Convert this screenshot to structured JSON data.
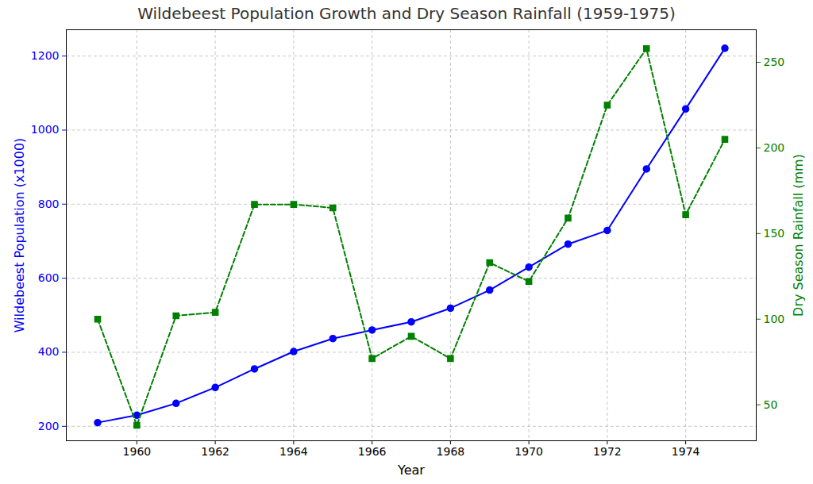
{
  "chart_data": {
    "type": "line",
    "title": "Wildebeest Population Growth and Dry Season Rainfall (1959-1975)",
    "x_label": "Year",
    "x": [
      1959,
      1960,
      1961,
      1962,
      1963,
      1964,
      1965,
      1966,
      1967,
      1968,
      1969,
      1970,
      1971,
      1972,
      1973,
      1974,
      1975
    ],
    "series": [
      {
        "name": "Wildebeest Population (x1000)",
        "color": "blue",
        "marker": "circle",
        "line_style": "solid",
        "values": [
          210,
          230,
          262,
          305,
          355,
          402,
          437,
          460,
          482,
          519,
          568,
          630,
          692,
          729,
          895,
          1057,
          1221
        ]
      },
      {
        "name": "Dry Season Rainfall (mm)",
        "color": "green",
        "marker": "square",
        "line_style": "dashed",
        "axis": "y2",
        "values": [
          100,
          38,
          102,
          104,
          167,
          167,
          165,
          77,
          90,
          77,
          133,
          122,
          159,
          225,
          258,
          161,
          205
        ]
      }
    ],
    "xlim": [
      1958.2,
      1975.8
    ],
    "xticks": [
      1960,
      1962,
      1964,
      1966,
      1968,
      1970,
      1972,
      1974
    ],
    "ylim": [
      161,
      1271
    ],
    "yticks": [
      200,
      400,
      600,
      800,
      1000,
      1200
    ],
    "y2lim": [
      29,
      269
    ],
    "y2ticks": [
      50,
      100,
      150,
      200,
      250
    ],
    "grid": true
  }
}
